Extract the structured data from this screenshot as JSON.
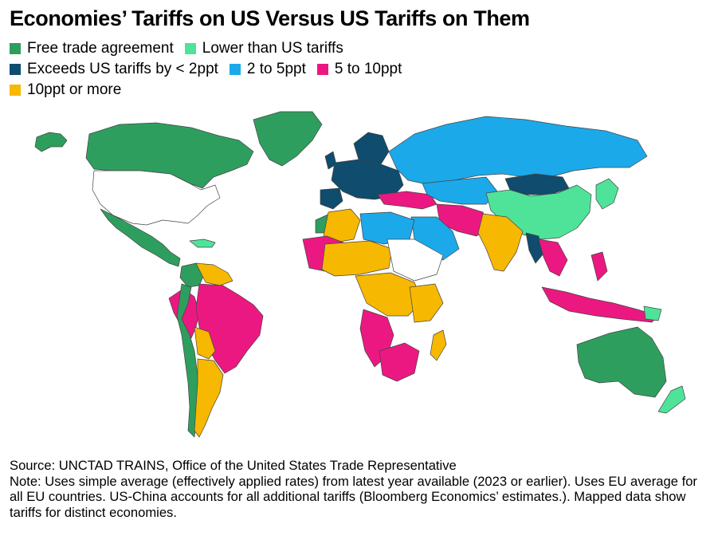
{
  "title": "Economies’ Tariffs on US Versus US Tariffs on Them",
  "legend": [
    {
      "label": "Free trade agreement",
      "color": "#2e9e5e"
    },
    {
      "label": "Lower than US tariffs",
      "color": "#4fe39a"
    },
    {
      "label": "Exceeds US tariffs by < 2ppt",
      "color": "#0f4c6e"
    },
    {
      "label": "2 to 5ppt",
      "color": "#1ca9ea"
    },
    {
      "label": "5 to 10ppt",
      "color": "#ec1882"
    },
    {
      "label": "10ppt or more",
      "color": "#f6b800"
    }
  ],
  "no_data_color": "#ffffff",
  "source": "Source: UNCTAD TRAINS, Office of the United States Trade Representative",
  "note": "Note: Uses simple average (effectively applied rates) from latest year available (2023 or earlier). Uses EU average for all EU countries. US-China accounts for all additional tariffs (Bloomberg Economics’ estimates.). Mapped data show tariffs for distinct economies."
}
